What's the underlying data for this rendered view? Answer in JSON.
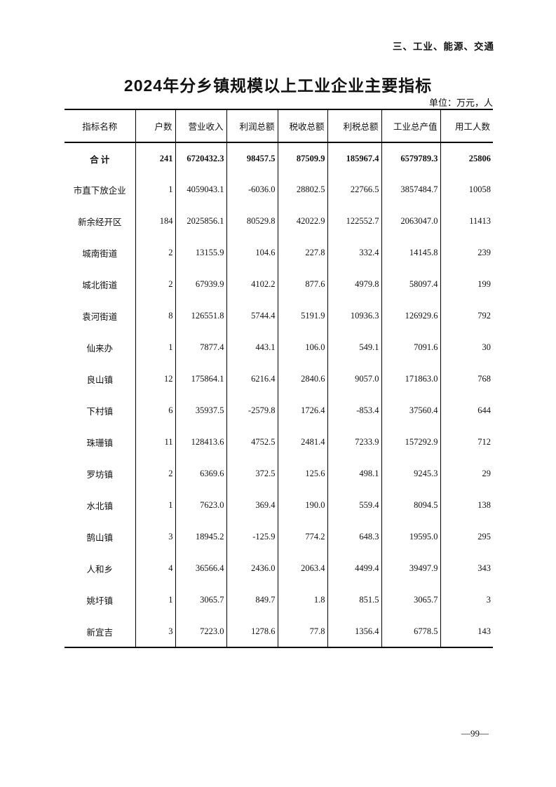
{
  "page": {
    "chapter_header": "三、工业、能源、交通",
    "title": "2024年分乡镇规模以上工业企业主要指标",
    "unit_note": "单位：万元，人",
    "page_number": "—99—"
  },
  "table": {
    "columns": [
      "指标名称",
      "户数",
      "营业收入",
      "利润总额",
      "税收总额",
      "利税总额",
      "工业总产值",
      "用工人数"
    ],
    "rows": [
      {
        "name": "合  计",
        "bold": true,
        "values": [
          "241",
          "6720432.3",
          "98457.5",
          "87509.9",
          "185967.4",
          "6579789.3",
          "25806"
        ]
      },
      {
        "name": "市直下放企业",
        "bold": false,
        "values": [
          "1",
          "4059043.1",
          "-6036.0",
          "28802.5",
          "22766.5",
          "3857484.7",
          "10058"
        ]
      },
      {
        "name": "新余经开区",
        "bold": false,
        "values": [
          "184",
          "2025856.1",
          "80529.8",
          "42022.9",
          "122552.7",
          "2063047.0",
          "11413"
        ]
      },
      {
        "name": "城南街道",
        "bold": false,
        "values": [
          "2",
          "13155.9",
          "104.6",
          "227.8",
          "332.4",
          "14145.8",
          "239"
        ]
      },
      {
        "name": "城北街道",
        "bold": false,
        "values": [
          "2",
          "67939.9",
          "4102.2",
          "877.6",
          "4979.8",
          "58097.4",
          "199"
        ]
      },
      {
        "name": "袁河街道",
        "bold": false,
        "values": [
          "8",
          "126551.8",
          "5744.4",
          "5191.9",
          "10936.3",
          "126929.6",
          "792"
        ]
      },
      {
        "name": "仙来办",
        "bold": false,
        "values": [
          "1",
          "7877.4",
          "443.1",
          "106.0",
          "549.1",
          "7091.6",
          "30"
        ]
      },
      {
        "name": "良山镇",
        "bold": false,
        "values": [
          "12",
          "175864.1",
          "6216.4",
          "2840.6",
          "9057.0",
          "171863.0",
          "768"
        ]
      },
      {
        "name": "下村镇",
        "bold": false,
        "values": [
          "6",
          "35937.5",
          "-2579.8",
          "1726.4",
          "-853.4",
          "37560.4",
          "644"
        ]
      },
      {
        "name": "珠珊镇",
        "bold": false,
        "values": [
          "11",
          "128413.6",
          "4752.5",
          "2481.4",
          "7233.9",
          "157292.9",
          "712"
        ]
      },
      {
        "name": "罗坊镇",
        "bold": false,
        "values": [
          "2",
          "6369.6",
          "372.5",
          "125.6",
          "498.1",
          "9245.3",
          "29"
        ]
      },
      {
        "name": "水北镇",
        "bold": false,
        "values": [
          "1",
          "7623.0",
          "369.4",
          "190.0",
          "559.4",
          "8094.5",
          "138"
        ]
      },
      {
        "name": "鹄山镇",
        "bold": false,
        "values": [
          "3",
          "18945.2",
          "-125.9",
          "774.2",
          "648.3",
          "19595.0",
          "295"
        ]
      },
      {
        "name": "人和乡",
        "bold": false,
        "values": [
          "4",
          "36566.4",
          "2436.0",
          "2063.4",
          "4499.4",
          "39497.9",
          "343"
        ]
      },
      {
        "name": "姚圩镇",
        "bold": false,
        "values": [
          "1",
          "3065.7",
          "849.7",
          "1.8",
          "851.5",
          "3065.7",
          "3"
        ]
      },
      {
        "name": "新宜吉",
        "bold": false,
        "values": [
          "3",
          "7223.0",
          "1278.6",
          "77.8",
          "1356.4",
          "6778.5",
          "143"
        ]
      }
    ]
  }
}
